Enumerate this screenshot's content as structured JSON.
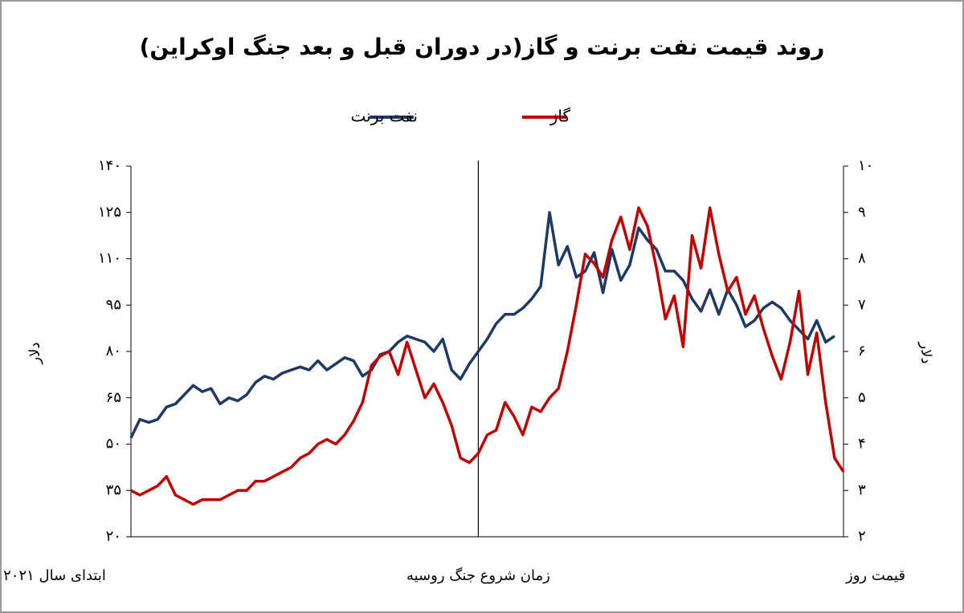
{
  "chart_data": {
    "type": "line",
    "title": "روند قیمت نفت برنت و گاز(در دوران قبل و بعد جنگ اوکراین)",
    "y_label": "دلار",
    "y2_label": "دلار",
    "categories": [
      "ابتدای سال ۲۰۲۱",
      null,
      null,
      null,
      null,
      null,
      null,
      null,
      null,
      null,
      null,
      null,
      null,
      null,
      null,
      null,
      null,
      null,
      null,
      null,
      null,
      null,
      null,
      null,
      null,
      null,
      null,
      null,
      null,
      null,
      null,
      null,
      null,
      null,
      null,
      null,
      null,
      null,
      null,
      "زمان شروع جنگ روسیه",
      null,
      null,
      null,
      null,
      null,
      null,
      null,
      null,
      null,
      null,
      null,
      null,
      null,
      null,
      null,
      null,
      null,
      null,
      null,
      null,
      null,
      null,
      null,
      null,
      null,
      null,
      null,
      null,
      null,
      null,
      null,
      null,
      null,
      null,
      null,
      null,
      null,
      null,
      null,
      null,
      "قیمت روز"
    ],
    "series": [
      {
        "name": "نفت برنت",
        "color": "#1f3864",
        "axis": "y",
        "values": [
          52,
          58,
          57,
          58,
          62,
          63,
          66,
          69,
          67,
          68,
          63,
          65,
          64,
          66,
          70,
          72,
          71,
          73,
          74,
          75,
          74,
          77,
          74,
          76,
          78,
          77,
          72,
          74,
          79,
          80,
          83,
          85,
          84,
          83,
          80,
          84,
          74,
          71,
          76,
          80,
          84,
          89,
          92,
          92,
          94,
          97,
          101,
          125,
          108,
          114,
          104,
          106,
          112,
          99,
          113,
          103,
          108,
          120,
          116,
          113,
          106,
          106,
          103,
          97,
          93,
          100,
          92,
          100,
          95,
          88,
          90,
          94,
          96,
          94,
          90,
          87,
          84,
          90,
          83,
          85,
          null
        ]
      },
      {
        "name": "گاز",
        "color": "#c00000",
        "axis": "y2",
        "values": [
          3.0,
          2.9,
          3.0,
          3.1,
          3.3,
          2.9,
          2.8,
          2.7,
          2.8,
          2.8,
          2.8,
          2.9,
          3.0,
          3.0,
          3.2,
          3.2,
          3.3,
          3.4,
          3.5,
          3.7,
          3.8,
          4.0,
          4.1,
          4.0,
          4.2,
          4.5,
          4.9,
          5.7,
          5.9,
          6.0,
          5.5,
          6.2,
          5.6,
          5.0,
          5.3,
          4.9,
          4.4,
          3.7,
          3.6,
          3.8,
          4.2,
          4.3,
          4.9,
          4.6,
          4.2,
          4.8,
          4.7,
          5.0,
          5.2,
          6.0,
          7.0,
          8.1,
          7.9,
          7.6,
          8.4,
          8.9,
          8.2,
          9.1,
          8.7,
          7.8,
          6.7,
          7.2,
          6.1,
          8.5,
          7.8,
          9.1,
          8.1,
          7.3,
          7.6,
          6.8,
          7.2,
          6.5,
          5.9,
          5.4,
          6.2,
          7.3,
          5.5,
          6.4,
          4.9,
          3.7,
          3.4
        ]
      }
    ],
    "ylim": [
      20,
      140
    ],
    "yticks": [
      {
        "value": 20,
        "label": "۲۰"
      },
      {
        "value": 35,
        "label": "۳۵"
      },
      {
        "value": 50,
        "label": "۵۰"
      },
      {
        "value": 65,
        "label": "۶۵"
      },
      {
        "value": 80,
        "label": "۸۰"
      },
      {
        "value": 95,
        "label": "۹۵"
      },
      {
        "value": 110,
        "label": "۱۱۰"
      },
      {
        "value": 125,
        "label": "۱۲۵"
      },
      {
        "value": 140,
        "label": "۱۴۰"
      }
    ],
    "y2lim": [
      2,
      10
    ],
    "y2ticks": [
      {
        "value": 2,
        "label": "۲"
      },
      {
        "value": 3,
        "label": "۳"
      },
      {
        "value": 4,
        "label": "۴"
      },
      {
        "value": 5,
        "label": "۵"
      },
      {
        "value": 6,
        "label": "۶"
      },
      {
        "value": 7,
        "label": "۷"
      },
      {
        "value": 8,
        "label": "۸"
      },
      {
        "value": 9,
        "label": "۹"
      },
      {
        "value": 10,
        "label": "۱۰"
      }
    ],
    "grid": false
  }
}
